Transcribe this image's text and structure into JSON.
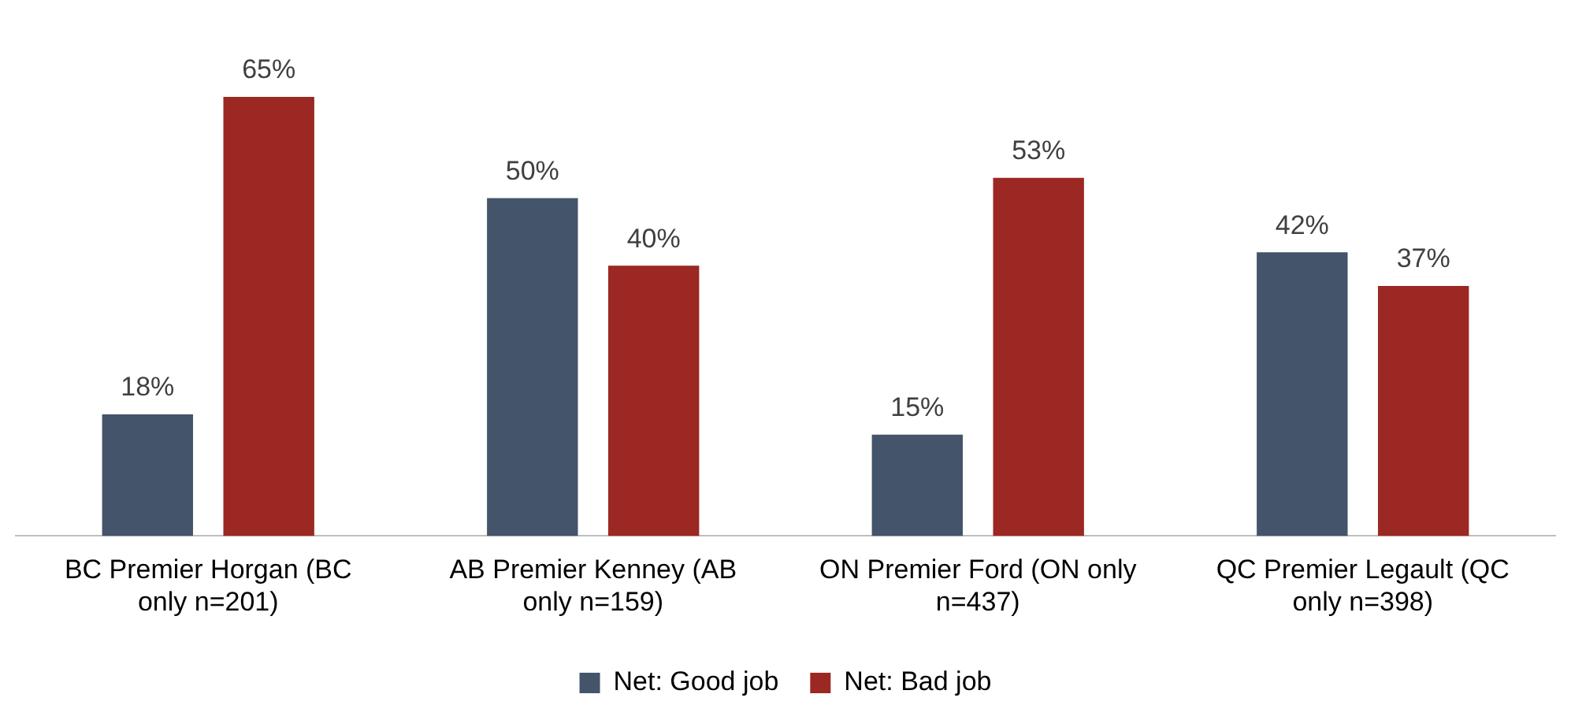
{
  "chart_data": {
    "type": "bar",
    "categories": [
      "BC Premier Horgan (BC only n=201)",
      "AB Premier Kenney (AB only n=159)",
      "ON Premier Ford (ON only n=437)",
      "QC Premier Legault (QC only n=398)"
    ],
    "series": [
      {
        "name": "Net: Good job",
        "color": "#44546a",
        "values": [
          18,
          50,
          15,
          42
        ],
        "value_labels": [
          "18%",
          "50%",
          "15%",
          "42%"
        ]
      },
      {
        "name": "Net: Bad job",
        "color": "#9b2823",
        "values": [
          65,
          40,
          53,
          37
        ],
        "value_labels": [
          "65%",
          "40%",
          "53%",
          "37%"
        ]
      }
    ],
    "legend": "bottom",
    "grid": false
  }
}
